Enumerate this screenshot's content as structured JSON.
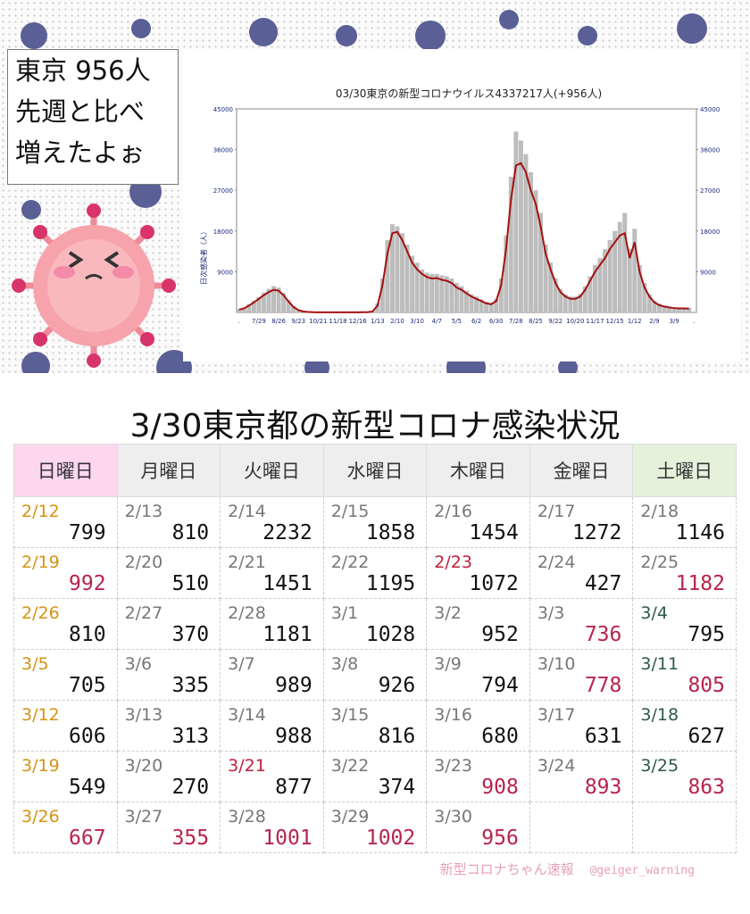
{
  "bubble": {
    "lines": [
      "東京 956人",
      "先週と比べ",
      "増えたよぉ"
    ]
  },
  "chart_data": {
    "type": "bar-line",
    "title": "03/30東京の新型コロナウイルス4337217人(+956人)",
    "ylabel": "日次感染者（人）",
    "categories": [
      ".",
      null,
      null,
      null,
      "7/29",
      null,
      null,
      null,
      "8/26",
      null,
      null,
      null,
      "9/23",
      null,
      null,
      null,
      "10/21",
      null,
      null,
      null,
      "11/18",
      null,
      null,
      null,
      "12/16",
      null,
      null,
      null,
      "1/13",
      null,
      null,
      null,
      "2/10",
      null,
      null,
      null,
      "3/10",
      null,
      null,
      null,
      "4/7",
      null,
      null,
      null,
      "5/5",
      null,
      null,
      null,
      "6/2",
      null,
      null,
      null,
      "6/30",
      null,
      null,
      null,
      "7/28",
      null,
      null,
      null,
      "8/25",
      null,
      null,
      null,
      "9/22",
      null,
      null,
      null,
      "10/20",
      null,
      null,
      null,
      "11/17",
      null,
      null,
      null,
      "12/15",
      null,
      null,
      null,
      "1/12",
      null,
      null,
      null,
      "2/9",
      null,
      null,
      null,
      "3/9",
      null,
      null,
      null,
      "."
    ],
    "series": [
      {
        "kind": "bar",
        "color": "#bdbdbd",
        "values": [
          700,
          1000,
          1800,
          2600,
          3400,
          4400,
          5200,
          5800,
          5500,
          4300,
          2700,
          1400,
          600,
          250,
          120,
          60,
          40,
          30,
          25,
          25,
          25,
          25,
          25,
          30,
          40,
          50,
          80,
          300,
          2000,
          7500,
          16000,
          19500,
          19000,
          17500,
          15000,
          12500,
          11000,
          9500,
          8800,
          8500,
          8500,
          8200,
          8000,
          7500,
          6500,
          5800,
          4800,
          4000,
          3500,
          2900,
          2300,
          2100,
          3000,
          7500,
          17000,
          30000,
          40000,
          38000,
          35000,
          31000,
          27000,
          22000,
          15000,
          11000,
          7500,
          5200,
          4000,
          3500,
          3500,
          4100,
          5800,
          8000,
          10500,
          12000,
          14000,
          16000,
          18000,
          20000,
          22000,
          14000,
          18500,
          10500,
          6500,
          4000,
          2600,
          1900,
          1500,
          1300,
          1100,
          1050,
          1050,
          1000,
          null
        ]
      },
      {
        "kind": "line",
        "color": "#a31010",
        "values": [
          600,
          900,
          1500,
          2200,
          3000,
          3800,
          4500,
          5000,
          4800,
          3800,
          2400,
          1200,
          500,
          200,
          100,
          50,
          30,
          25,
          20,
          20,
          20,
          20,
          20,
          25,
          30,
          40,
          60,
          200,
          1500,
          6000,
          13000,
          17500,
          17800,
          16000,
          13500,
          11000,
          9500,
          8500,
          7800,
          7500,
          7600,
          7200,
          7000,
          6500,
          5500,
          5000,
          4200,
          3500,
          3000,
          2500,
          2000,
          1800,
          2500,
          6000,
          14000,
          25000,
          32500,
          33000,
          31000,
          27000,
          24000,
          19000,
          13000,
          9500,
          6500,
          4500,
          3500,
          3000,
          3000,
          3500,
          5000,
          7000,
          9000,
          10500,
          12000,
          14000,
          15500,
          17000,
          17500,
          12000,
          15500,
          9000,
          5500,
          3500,
          2200,
          1600,
          1300,
          1100,
          950,
          900,
          900,
          850,
          null
        ]
      }
    ],
    "ylim": [
      0,
      45000
    ],
    "yticks": [
      9000,
      18000,
      27000,
      36000,
      45000
    ],
    "y2lim": [
      0,
      45000
    ],
    "y2ticks": [
      9000,
      18000,
      27000,
      36000,
      45000
    ]
  },
  "table": {
    "title": "3/30東京都の新型コロナ感染状況",
    "header": [
      "日曜日",
      "月曜日",
      "火曜日",
      "水曜日",
      "木曜日",
      "金曜日",
      "土曜日"
    ],
    "rows": [
      [
        {
          "date": "2/12",
          "count": 799
        },
        {
          "date": "2/13",
          "count": 810
        },
        {
          "date": "2/14",
          "count": 2232
        },
        {
          "date": "2/15",
          "count": 1858
        },
        {
          "date": "2/16",
          "count": 1454
        },
        {
          "date": "2/17",
          "count": 1272
        },
        {
          "date": "2/18",
          "count": 1146
        }
      ],
      [
        {
          "date": "2/19",
          "count": 992,
          "up": true
        },
        {
          "date": "2/20",
          "count": 510
        },
        {
          "date": "2/21",
          "count": 1451
        },
        {
          "date": "2/22",
          "count": 1195
        },
        {
          "date": "2/23",
          "count": 1072,
          "holiday": true
        },
        {
          "date": "2/24",
          "count": 427
        },
        {
          "date": "2/25",
          "count": 1182,
          "up": true
        }
      ],
      [
        {
          "date": "2/26",
          "count": 810
        },
        {
          "date": "2/27",
          "count": 370
        },
        {
          "date": "2/28",
          "count": 1181
        },
        {
          "date": "3/1",
          "count": 1028
        },
        {
          "date": "3/2",
          "count": 952
        },
        {
          "date": "3/3",
          "count": 736,
          "up": true
        },
        {
          "date": "3/4",
          "count": 795
        }
      ],
      [
        {
          "date": "3/5",
          "count": 705
        },
        {
          "date": "3/6",
          "count": 335
        },
        {
          "date": "3/7",
          "count": 989
        },
        {
          "date": "3/8",
          "count": 926
        },
        {
          "date": "3/9",
          "count": 794
        },
        {
          "date": "3/10",
          "count": 778,
          "up": true
        },
        {
          "date": "3/11",
          "count": 805,
          "up": true
        }
      ],
      [
        {
          "date": "3/12",
          "count": 606
        },
        {
          "date": "3/13",
          "count": 313
        },
        {
          "date": "3/14",
          "count": 988
        },
        {
          "date": "3/15",
          "count": 816
        },
        {
          "date": "3/16",
          "count": 680
        },
        {
          "date": "3/17",
          "count": 631
        },
        {
          "date": "3/18",
          "count": 627
        }
      ],
      [
        {
          "date": "3/19",
          "count": 549
        },
        {
          "date": "3/20",
          "count": 270
        },
        {
          "date": "3/21",
          "count": 877,
          "holiday": true
        },
        {
          "date": "3/22",
          "count": 374
        },
        {
          "date": "3/23",
          "count": 908,
          "up": true
        },
        {
          "date": "3/24",
          "count": 893,
          "up": true
        },
        {
          "date": "3/25",
          "count": 863,
          "up": true
        }
      ],
      [
        {
          "date": "3/26",
          "count": 667,
          "up": true
        },
        {
          "date": "3/27",
          "count": 355,
          "up": true
        },
        {
          "date": "3/28",
          "count": 1001,
          "up": true
        },
        {
          "date": "3/29",
          "count": 1002,
          "up": true
        },
        {
          "date": "3/30",
          "count": 956,
          "up": true
        }
      ]
    ]
  },
  "footer": {
    "brand": "新型コロナちゃん速報",
    "handle": "@geiger_warning"
  }
}
